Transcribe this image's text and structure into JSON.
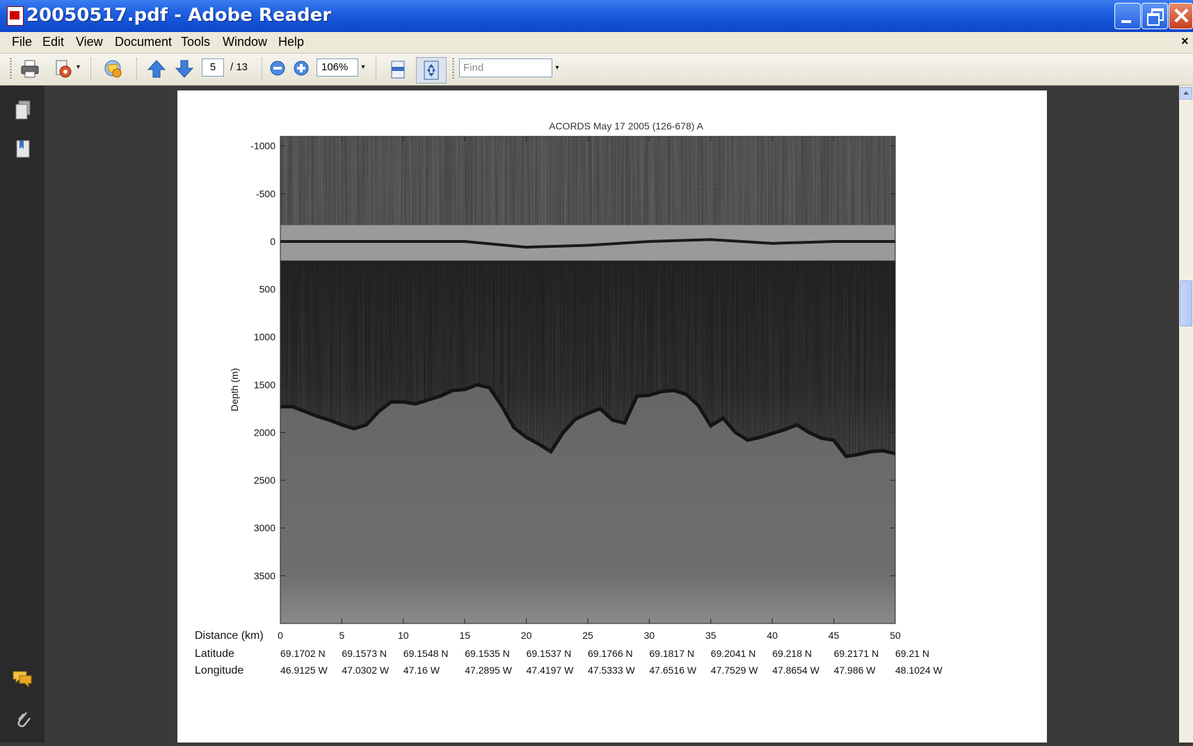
{
  "window": {
    "title": "20050517.pdf - Adobe Reader"
  },
  "menu": {
    "items": [
      "File",
      "Edit",
      "View",
      "Document",
      "Tools",
      "Window",
      "Help"
    ],
    "close_doc": "×"
  },
  "toolbar": {
    "page_current": "5",
    "page_total": "/ 13",
    "zoom": "106%",
    "find_placeholder": "Find"
  },
  "chart_data": {
    "type": "heatmap",
    "title": "ACORDS May 17 2005 (126-678) A",
    "ylabel": "Depth (m)",
    "xlabel": "Distance (km)",
    "yticks": [
      "-1000",
      "-500",
      "0",
      "500",
      "1000",
      "1500",
      "2000",
      "2500",
      "3000",
      "3500"
    ],
    "ytick_values": [
      -1000,
      -500,
      0,
      500,
      1000,
      1500,
      2000,
      2500,
      3000,
      3500
    ],
    "xticks": [
      "0",
      "5",
      "10",
      "15",
      "20",
      "25",
      "30",
      "35",
      "40",
      "45",
      "50"
    ],
    "xtick_values": [
      0,
      5,
      10,
      15,
      20,
      25,
      30,
      35,
      40,
      45,
      50
    ],
    "xlim": [
      0,
      50
    ],
    "ylim": [
      -1100,
      4000
    ],
    "row_labels": {
      "latitude": "Latitude",
      "longitude": "Longitude"
    },
    "latitude": [
      "69.1702 N",
      "69.1573 N",
      "69.1548 N",
      "69.1535 N",
      "69.1537 N",
      "69.1766 N",
      "69.1817 N",
      "69.2041 N",
      "69.218 N",
      "69.2171 N",
      "69.21 N"
    ],
    "longitude": [
      "46.9125 W",
      "47.0302 W",
      "47.16 W",
      "47.2895 W",
      "47.4197 W",
      "47.5333 W",
      "47.6516 W",
      "47.7529 W",
      "47.8654 W",
      "47.986 W",
      "48.1024 W"
    ],
    "surface_depth": [
      0,
      0,
      0,
      0,
      60,
      40,
      0,
      -20,
      20,
      0,
      0
    ],
    "bed_km": [
      0,
      1,
      2,
      3,
      4,
      5,
      6,
      7,
      8,
      9,
      10,
      11,
      12,
      13,
      14,
      15,
      16,
      17,
      18,
      19,
      20,
      21,
      22,
      23,
      24,
      25,
      26,
      27,
      28,
      29,
      30,
      31,
      32,
      33,
      34,
      35,
      36,
      37,
      38,
      39,
      40,
      41,
      42,
      43,
      44,
      45,
      46,
      47,
      48,
      49,
      50
    ],
    "bed_depth": [
      1730,
      1730,
      1780,
      1830,
      1870,
      1920,
      1960,
      1920,
      1780,
      1680,
      1680,
      1700,
      1660,
      1620,
      1560,
      1550,
      1500,
      1530,
      1720,
      1950,
      2050,
      2120,
      2200,
      2000,
      1860,
      1800,
      1750,
      1870,
      1900,
      1620,
      1610,
      1570,
      1560,
      1600,
      1720,
      1930,
      1850,
      2000,
      2080,
      2050,
      2010,
      1970,
      1920,
      2000,
      2060,
      2080,
      2250,
      2230,
      2200,
      2190,
      2220
    ]
  },
  "colors": {
    "title_bar": "#0a46c9",
    "menu_bg": "#ece9d8",
    "workspace": "#3a3a3a"
  }
}
